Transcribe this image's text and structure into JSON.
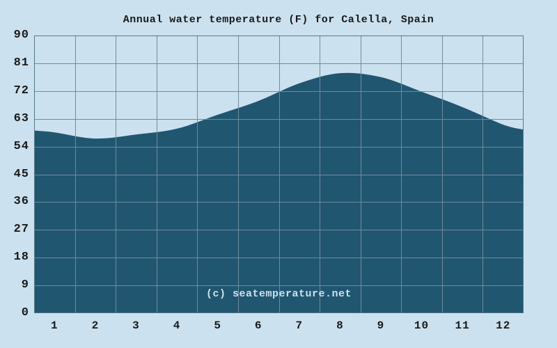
{
  "page": {
    "title": "Annual water temperature (F) for Calella, Spain",
    "watermark": "(c) seatemperature.net"
  },
  "colors": {
    "background": "#cce1ef",
    "area_fill": "#215671",
    "gridline": "#6e8c9b",
    "frame": "#567888",
    "text": "#191919",
    "watermark_text": "#cce1ef"
  },
  "chart_data": {
    "type": "area",
    "title": "Annual water temperature (F) for Calella, Spain",
    "xlabel": "",
    "ylabel": "",
    "unit": "F",
    "categories": [
      1,
      2,
      3,
      4,
      5,
      6,
      7,
      8,
      9,
      10,
      11,
      12
    ],
    "values": [
      58.6,
      56.6,
      57.9,
      59.8,
      64.3,
      68.8,
      74.5,
      77.8,
      76.5,
      71.8,
      66.8,
      61.1
    ],
    "edge_values": {
      "start": 59.2,
      "end": 59.5
    },
    "ylim": [
      0,
      90
    ],
    "yticks": [
      90,
      81,
      72,
      63,
      54,
      45,
      36,
      27,
      18,
      9,
      0
    ],
    "xticks": [
      "1",
      "2",
      "3",
      "4",
      "5",
      "6",
      "7",
      "8",
      "9",
      "10",
      "11",
      "12"
    ],
    "grid": true,
    "legend": false
  }
}
